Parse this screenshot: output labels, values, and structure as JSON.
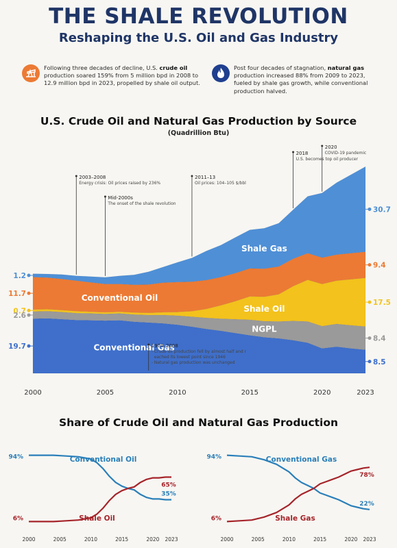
{
  "title": "THE SHALE REVOLUTION",
  "subtitle": "Reshaping the U.S. Oil and Gas Industry",
  "intro_oil": {
    "icon": "oil-pump-icon",
    "text_before": "Following three decades of decline, U.S. ",
    "bold": "crude oil",
    "text_after": " production soared 159% from 5 million bpd in 2008 to 12.9 million bpd in 2023, propelled by shale oil output.",
    "color": "#ec7a34"
  },
  "intro_gas": {
    "icon": "gas-flame-icon",
    "text_before": "Post four decades of stagnation, ",
    "bold": "natural gas",
    "text_after": " production increased 88% from 2009 to 2023, fueled by shale gas growth, while conventional production halved.",
    "color": "#1f3f8f"
  },
  "colors": {
    "conventional_gas": "#3f6fcb",
    "ngpl": "#9a9a9a",
    "shale_oil": "#f3c21c",
    "conventional_oil": "#ec7a34",
    "shale_gas": "#4f8fd6",
    "dark_red": "#a5242a",
    "share_blue": "#2a7fb9"
  },
  "chart_data": [
    {
      "type": "area",
      "title": "U.S. Crude Oil and Natural Gas Production by Source",
      "subtitle": "(Quadrillion Btu)",
      "x": [
        2000,
        2001,
        2002,
        2003,
        2004,
        2005,
        2006,
        2007,
        2008,
        2009,
        2010,
        2011,
        2012,
        2013,
        2014,
        2015,
        2016,
        2017,
        2018,
        2019,
        2020,
        2021,
        2022,
        2023
      ],
      "x_ticks": [
        2000,
        2005,
        2010,
        2015,
        2020,
        2023
      ],
      "series": [
        {
          "name": "Conventional Gas",
          "values": [
            19.7,
            19.8,
            19.5,
            19.2,
            19.1,
            19.0,
            19.1,
            18.6,
            18.3,
            18.0,
            17.5,
            16.8,
            16.0,
            15.3,
            14.5,
            13.7,
            13.0,
            12.6,
            11.9,
            11.0,
            9.0,
            9.6,
            9.0,
            8.5
          ]
        },
        {
          "name": "NGPL",
          "values": [
            2.6,
            2.6,
            2.6,
            2.5,
            2.5,
            2.4,
            2.5,
            2.6,
            2.7,
            3.0,
            3.3,
            3.6,
            4.0,
            4.4,
            5.0,
            5.6,
            5.8,
            6.1,
            7.0,
            7.7,
            8.0,
            8.2,
            8.3,
            8.4
          ]
        },
        {
          "name": "Shale Oil",
          "values": [
            0.7,
            0.7,
            0.7,
            0.7,
            0.6,
            0.6,
            0.6,
            0.7,
            0.8,
            1.0,
            1.3,
            2.0,
            3.2,
            4.8,
            6.5,
            8.4,
            8.8,
            9.8,
            12.5,
            15.0,
            15.2,
            15.6,
            16.6,
            17.5
          ]
        },
        {
          "name": "Conventional Oil",
          "values": [
            11.7,
            11.4,
            11.2,
            11.0,
            10.6,
            10.2,
            10.0,
            10.0,
            10.2,
            10.7,
            10.8,
            10.6,
            10.4,
            10.2,
            10.1,
            10.1,
            10.1,
            10.0,
            9.9,
            9.6,
            9.5,
            9.4,
            9.4,
            9.4
          ]
        },
        {
          "name": "Shale Gas",
          "values": [
            1.2,
            1.3,
            1.6,
            1.7,
            2.1,
            2.4,
            2.9,
            3.6,
            4.6,
            5.6,
            7.1,
            8.6,
            10.5,
            11.5,
            12.9,
            13.9,
            14.6,
            15.6,
            17.7,
            20.5,
            23.3,
            25.9,
            28.3,
            30.7
          ]
        }
      ],
      "series_labels": [
        "Conventional Gas",
        "NGPL",
        "Shale Oil",
        "Conventional Oil",
        "Shale Gas"
      ],
      "start_labels": [
        {
          "value": "1.2",
          "series": "Shale Gas"
        },
        {
          "value": "0.7",
          "series": "Shale Oil"
        },
        {
          "value": "11.7",
          "series": "Conventional Oil"
        },
        {
          "value": "2.6",
          "series": "NGPL"
        },
        {
          "value": "19.7",
          "series": "Conventional Gas"
        }
      ],
      "end_labels": [
        {
          "value": "30.7",
          "series": "Shale Gas"
        },
        {
          "value": "17.5",
          "series": "Shale Oil"
        },
        {
          "value": "9.4",
          "series": "Conventional Oil"
        },
        {
          "value": "8.4",
          "series": "NGPL"
        },
        {
          "value": "8.5",
          "series": "Conventional Gas"
        }
      ],
      "annotations": [
        {
          "year": 2003,
          "label": "2003–2008",
          "text": "Energy crisis: Oil prices raised by 236%"
        },
        {
          "year": 2005,
          "label": "Mid-2000s",
          "text": "The onset of the shale revolution"
        },
        {
          "year": 2011,
          "label": "2011–13",
          "text": "Oil prices: 104–105 $/bbl"
        },
        {
          "year": 2018,
          "label": "2018",
          "text": "U.S. becomes top oil producer"
        },
        {
          "year": 2020,
          "label": "2020",
          "text": "COVID-19 pandemic"
        },
        {
          "year": 2003,
          "label": "1970–2008",
          "text": "- Crude oil production fell by almost half and reached its lowest point since 1946\n- Natural gas production was unchanged"
        }
      ]
    },
    {
      "type": "line",
      "title": "Share of Crude Oil and Natural Gas Production",
      "panel": "oil",
      "x": [
        2000,
        2002,
        2004,
        2006,
        2008,
        2010,
        2011,
        2012,
        2013,
        2014,
        2015,
        2016,
        2017,
        2018,
        2019,
        2020,
        2021,
        2022,
        2023
      ],
      "x_ticks": [
        2000,
        2005,
        2010,
        2015,
        2020,
        2023
      ],
      "ylim": [
        0,
        100
      ],
      "series": [
        {
          "name": "Conventional Oil",
          "values": [
            94,
            94,
            94,
            93,
            92,
            89,
            84,
            76,
            66,
            58,
            53,
            50,
            48,
            42,
            38,
            36,
            36,
            35,
            35
          ]
        },
        {
          "name": "Shale Oil",
          "values": [
            6,
            6,
            6,
            7,
            8,
            11,
            16,
            24,
            34,
            42,
            47,
            50,
            52,
            58,
            62,
            64,
            64,
            65,
            65
          ]
        }
      ],
      "start_labels": [
        "94%",
        "6%"
      ],
      "end_labels": [
        "35%",
        "65%"
      ]
    },
    {
      "type": "line",
      "panel": "gas",
      "x": [
        2000,
        2002,
        2004,
        2006,
        2008,
        2010,
        2011,
        2012,
        2013,
        2014,
        2015,
        2016,
        2017,
        2018,
        2019,
        2020,
        2021,
        2022,
        2023
      ],
      "x_ticks": [
        2000,
        2005,
        2010,
        2015,
        2020,
        2023
      ],
      "ylim": [
        0,
        100
      ],
      "series": [
        {
          "name": "Conventional Gas",
          "values": [
            94,
            93,
            92,
            88,
            82,
            72,
            64,
            58,
            54,
            50,
            44,
            41,
            38,
            35,
            31,
            27,
            25,
            23,
            22
          ]
        },
        {
          "name": "Shale Gas",
          "values": [
            6,
            7,
            8,
            12,
            18,
            28,
            36,
            42,
            46,
            50,
            56,
            59,
            62,
            65,
            69,
            73,
            75,
            77,
            78
          ]
        }
      ],
      "start_labels": [
        "94%",
        "6%"
      ],
      "end_labels": [
        "22%",
        "78%"
      ]
    }
  ]
}
